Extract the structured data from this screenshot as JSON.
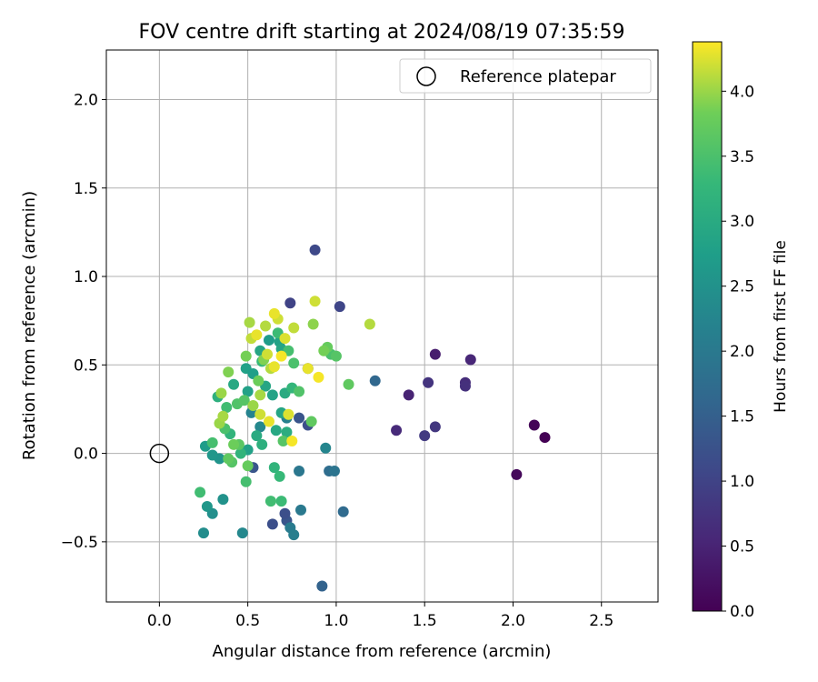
{
  "chart_data": {
    "type": "scatter",
    "title": "FOV centre drift starting at 2024/08/19 07:35:59",
    "xlabel": "Angular distance from reference (arcmin)",
    "ylabel": "Rotation from reference (arcmin)",
    "xlim": [
      -0.3,
      2.82
    ],
    "ylim": [
      -0.84,
      2.28
    ],
    "xticks": [
      0.0,
      0.5,
      1.0,
      1.5,
      2.0,
      2.5
    ],
    "yticks": [
      -0.5,
      0.0,
      0.5,
      1.0,
      1.5,
      2.0
    ],
    "grid": true,
    "legend": {
      "position": "top-right",
      "entries": [
        "Reference platepar"
      ]
    },
    "reference": {
      "x": 0.0,
      "y": 0.0,
      "label": "Reference platepar"
    },
    "colorbar": {
      "label": "Hours from first FF file",
      "range": [
        0.0,
        4.38
      ],
      "ticks": [
        0.0,
        0.5,
        1.0,
        1.5,
        2.0,
        2.5,
        3.0,
        3.5,
        4.0
      ],
      "colormap": "viridis"
    },
    "points": [
      {
        "x": 2.18,
        "y": 0.09,
        "t": 0.0
      },
      {
        "x": 2.12,
        "y": 0.16,
        "t": 0.05
      },
      {
        "x": 2.02,
        "y": -0.12,
        "t": 0.1
      },
      {
        "x": 1.56,
        "y": 0.56,
        "t": 0.4
      },
      {
        "x": 1.76,
        "y": 0.53,
        "t": 0.55
      },
      {
        "x": 1.41,
        "y": 0.33,
        "t": 0.5
      },
      {
        "x": 1.34,
        "y": 0.13,
        "t": 0.6
      },
      {
        "x": 1.73,
        "y": 0.4,
        "t": 0.65
      },
      {
        "x": 1.73,
        "y": 0.38,
        "t": 0.7
      },
      {
        "x": 1.52,
        "y": 0.4,
        "t": 0.75
      },
      {
        "x": 1.56,
        "y": 0.15,
        "t": 0.8
      },
      {
        "x": 1.5,
        "y": 0.1,
        "t": 0.85
      },
      {
        "x": 0.88,
        "y": 1.15,
        "t": 1.1
      },
      {
        "x": 1.02,
        "y": 0.83,
        "t": 1.05
      },
      {
        "x": 0.74,
        "y": 0.85,
        "t": 1.0
      },
      {
        "x": 0.84,
        "y": 0.48,
        "t": 1.05
      },
      {
        "x": 0.79,
        "y": 0.2,
        "t": 1.3
      },
      {
        "x": 0.84,
        "y": 0.16,
        "t": 1.2
      },
      {
        "x": 0.64,
        "y": -0.4,
        "t": 1.2
      },
      {
        "x": 0.72,
        "y": -0.38,
        "t": 1.3
      },
      {
        "x": 0.71,
        "y": -0.34,
        "t": 1.2
      },
      {
        "x": 0.53,
        "y": -0.08,
        "t": 1.3
      },
      {
        "x": 0.92,
        "y": -0.75,
        "t": 1.55
      },
      {
        "x": 1.22,
        "y": 0.41,
        "t": 1.65
      },
      {
        "x": 1.04,
        "y": -0.33,
        "t": 1.7
      },
      {
        "x": 0.96,
        "y": -0.1,
        "t": 1.75
      },
      {
        "x": 0.99,
        "y": -0.1,
        "t": 1.9
      },
      {
        "x": 0.79,
        "y": -0.1,
        "t": 1.95
      },
      {
        "x": 0.8,
        "y": -0.32,
        "t": 2.0
      },
      {
        "x": 0.74,
        "y": -0.42,
        "t": 2.05
      },
      {
        "x": 0.76,
        "y": -0.46,
        "t": 2.1
      },
      {
        "x": 0.94,
        "y": 0.03,
        "t": 2.25
      },
      {
        "x": 0.72,
        "y": 0.2,
        "t": 2.15
      },
      {
        "x": 0.52,
        "y": 0.23,
        "t": 2.2
      },
      {
        "x": 0.57,
        "y": 0.15,
        "t": 2.3
      },
      {
        "x": 0.47,
        "y": -0.45,
        "t": 2.3
      },
      {
        "x": 0.25,
        "y": -0.45,
        "t": 2.4
      },
      {
        "x": 0.3,
        "y": -0.34,
        "t": 2.45
      },
      {
        "x": 0.36,
        "y": -0.26,
        "t": 2.5
      },
      {
        "x": 0.27,
        "y": -0.3,
        "t": 2.6
      },
      {
        "x": 0.34,
        "y": -0.03,
        "t": 2.55
      },
      {
        "x": 0.3,
        "y": -0.01,
        "t": 2.6
      },
      {
        "x": 0.26,
        "y": 0.04,
        "t": 2.7
      },
      {
        "x": 0.5,
        "y": 0.02,
        "t": 2.8
      },
      {
        "x": 0.62,
        "y": 0.64,
        "t": 2.7
      },
      {
        "x": 0.68,
        "y": 0.63,
        "t": 2.8
      },
      {
        "x": 0.69,
        "y": 0.59,
        "t": 2.9
      },
      {
        "x": 0.57,
        "y": 0.58,
        "t": 2.9
      },
      {
        "x": 0.49,
        "y": 0.48,
        "t": 2.8
      },
      {
        "x": 0.53,
        "y": 0.45,
        "t": 2.75
      },
      {
        "x": 0.6,
        "y": 0.38,
        "t": 2.9
      },
      {
        "x": 0.64,
        "y": 0.33,
        "t": 2.85
      },
      {
        "x": 0.71,
        "y": 0.34,
        "t": 3.0
      },
      {
        "x": 0.69,
        "y": 0.23,
        "t": 2.9
      },
      {
        "x": 0.66,
        "y": 0.13,
        "t": 2.95
      },
      {
        "x": 0.72,
        "y": 0.12,
        "t": 3.05
      },
      {
        "x": 0.55,
        "y": 0.1,
        "t": 3.0
      },
      {
        "x": 0.58,
        "y": 0.05,
        "t": 3.1
      },
      {
        "x": 0.5,
        "y": 0.35,
        "t": 2.8
      },
      {
        "x": 0.42,
        "y": 0.39,
        "t": 2.95
      },
      {
        "x": 0.33,
        "y": 0.32,
        "t": 3.1
      },
      {
        "x": 0.4,
        "y": 0.11,
        "t": 3.2
      },
      {
        "x": 0.46,
        "y": 0.0,
        "t": 3.2
      },
      {
        "x": 0.65,
        "y": -0.08,
        "t": 3.2
      },
      {
        "x": 0.68,
        "y": -0.13,
        "t": 3.3
      },
      {
        "x": 0.69,
        "y": -0.27,
        "t": 3.35
      },
      {
        "x": 0.63,
        "y": -0.27,
        "t": 3.4
      },
      {
        "x": 0.49,
        "y": -0.16,
        "t": 3.45
      },
      {
        "x": 0.23,
        "y": -0.22,
        "t": 3.4
      },
      {
        "x": 0.3,
        "y": 0.06,
        "t": 3.45
      },
      {
        "x": 0.37,
        "y": 0.14,
        "t": 3.5
      },
      {
        "x": 0.38,
        "y": 0.26,
        "t": 3.4
      },
      {
        "x": 0.44,
        "y": 0.28,
        "t": 3.55
      },
      {
        "x": 0.48,
        "y": 0.3,
        "t": 3.6
      },
      {
        "x": 0.58,
        "y": 0.52,
        "t": 3.3
      },
      {
        "x": 0.75,
        "y": 0.37,
        "t": 3.25
      },
      {
        "x": 0.67,
        "y": 0.68,
        "t": 3.35
      },
      {
        "x": 0.73,
        "y": 0.58,
        "t": 3.45
      },
      {
        "x": 0.76,
        "y": 0.51,
        "t": 3.5
      },
      {
        "x": 0.79,
        "y": 0.35,
        "t": 3.55
      },
      {
        "x": 0.7,
        "y": 0.07,
        "t": 3.6
      },
      {
        "x": 0.45,
        "y": 0.05,
        "t": 3.65
      },
      {
        "x": 0.41,
        "y": -0.05,
        "t": 3.6
      },
      {
        "x": 0.39,
        "y": -0.03,
        "t": 3.7
      },
      {
        "x": 0.5,
        "y": -0.07,
        "t": 3.75
      },
      {
        "x": 0.42,
        "y": 0.05,
        "t": 3.8
      },
      {
        "x": 0.86,
        "y": 0.18,
        "t": 3.7
      },
      {
        "x": 0.97,
        "y": 0.56,
        "t": 3.5
      },
      {
        "x": 1.0,
        "y": 0.55,
        "t": 3.6
      },
      {
        "x": 0.95,
        "y": 0.6,
        "t": 3.75
      },
      {
        "x": 1.07,
        "y": 0.39,
        "t": 3.7
      },
      {
        "x": 0.93,
        "y": 0.58,
        "t": 3.85
      },
      {
        "x": 0.87,
        "y": 0.73,
        "t": 3.95
      },
      {
        "x": 0.59,
        "y": 0.53,
        "t": 3.9
      },
      {
        "x": 0.56,
        "y": 0.41,
        "t": 3.8
      },
      {
        "x": 0.49,
        "y": 0.55,
        "t": 3.85
      },
      {
        "x": 0.39,
        "y": 0.46,
        "t": 3.9
      },
      {
        "x": 0.35,
        "y": 0.34,
        "t": 4.0
      },
      {
        "x": 0.34,
        "y": 0.17,
        "t": 4.0
      },
      {
        "x": 0.36,
        "y": 0.21,
        "t": 4.05
      },
      {
        "x": 0.53,
        "y": 0.27,
        "t": 4.0
      },
      {
        "x": 0.57,
        "y": 0.33,
        "t": 4.05
      },
      {
        "x": 0.51,
        "y": 0.74,
        "t": 4.05
      },
      {
        "x": 0.6,
        "y": 0.72,
        "t": 4.1
      },
      {
        "x": 0.52,
        "y": 0.65,
        "t": 4.15
      },
      {
        "x": 0.63,
        "y": 0.48,
        "t": 4.1
      },
      {
        "x": 0.67,
        "y": 0.76,
        "t": 4.2
      },
      {
        "x": 0.71,
        "y": 0.65,
        "t": 4.25
      },
      {
        "x": 0.65,
        "y": 0.79,
        "t": 4.3
      },
      {
        "x": 0.55,
        "y": 0.67,
        "t": 4.3
      },
      {
        "x": 0.61,
        "y": 0.56,
        "t": 4.2
      },
      {
        "x": 0.69,
        "y": 0.55,
        "t": 4.35
      },
      {
        "x": 0.65,
        "y": 0.49,
        "t": 4.3
      },
      {
        "x": 0.76,
        "y": 0.71,
        "t": 4.15
      },
      {
        "x": 0.84,
        "y": 0.48,
        "t": 4.3
      },
      {
        "x": 0.9,
        "y": 0.43,
        "t": 4.35
      },
      {
        "x": 0.88,
        "y": 0.86,
        "t": 4.2
      },
      {
        "x": 0.73,
        "y": 0.22,
        "t": 4.25
      },
      {
        "x": 0.75,
        "y": 0.07,
        "t": 4.35
      },
      {
        "x": 1.19,
        "y": 0.73,
        "t": 4.1
      },
      {
        "x": 0.57,
        "y": 0.22,
        "t": 4.2
      },
      {
        "x": 0.62,
        "y": 0.18,
        "t": 4.3
      }
    ]
  }
}
